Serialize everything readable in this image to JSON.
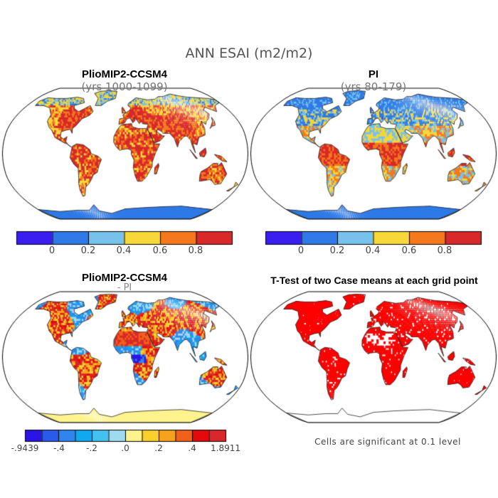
{
  "figure": {
    "title": "ANN ESAI (m2/m2)",
    "footnote": "Cells are significant at 0.1 level"
  },
  "panels": [
    {
      "id": "a",
      "title": "PlioMIP2-CCSM4",
      "subtitle": "(yrs 1000-1099)"
    },
    {
      "id": "b",
      "title": "PI",
      "subtitle": "(yrs 80-179)"
    },
    {
      "id": "c",
      "title": "PlioMIP2-CCSM4",
      "subtitle": "- PI"
    },
    {
      "id": "d",
      "title": "T-Test of two Case means at each grid point",
      "subtitle": ""
    }
  ],
  "colorbar_top": {
    "colors": [
      "#3a1ef0",
      "#2f7ae6",
      "#77c2ea",
      "#f7d73a",
      "#f5781d",
      "#d8282a"
    ],
    "tick_labels": [
      "0",
      "0.2",
      "0.4",
      "0.6",
      "0.8"
    ]
  },
  "colorbar_diff": {
    "colors": [
      "#2c14e6",
      "#2a5ae8",
      "#2f84ee",
      "#10a8ee",
      "#42c2ee",
      "#9edaf0",
      "#fff38e",
      "#fad12c",
      "#f6a21c",
      "#f2611a",
      "#e4090d",
      "#d8282a"
    ],
    "tick_labels": [
      "-.9439",
      "-.4",
      "-.2",
      ".0",
      ".2",
      ".4",
      "1.8911"
    ]
  },
  "significance_color": "#ff0000"
}
